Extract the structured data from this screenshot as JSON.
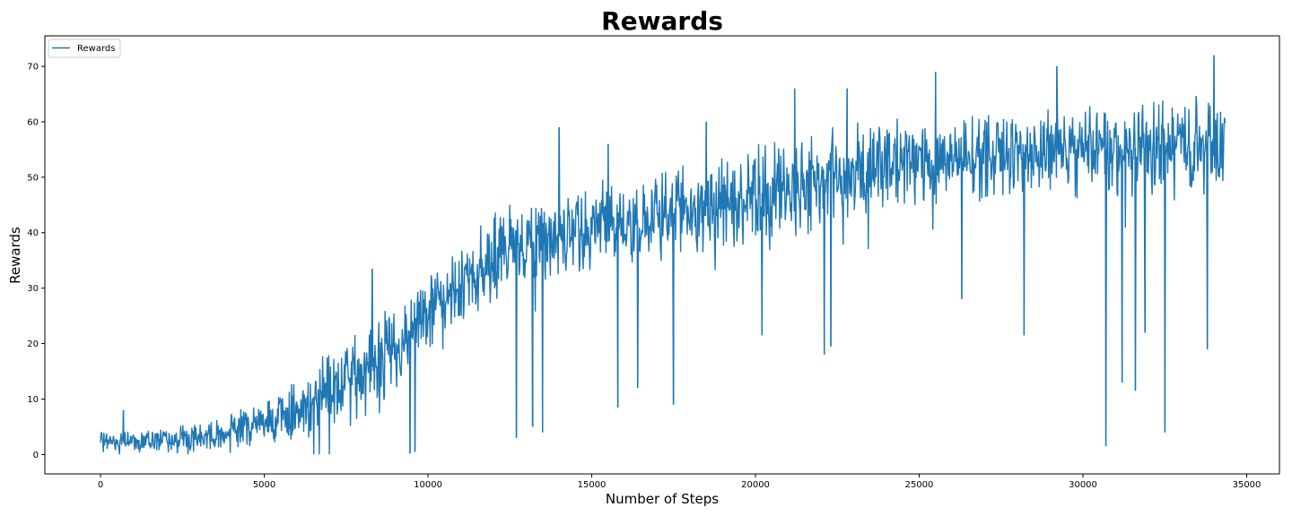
{
  "chart_data": {
    "type": "line",
    "title": "Rewards",
    "xlabel": "Number of Steps",
    "ylabel": "Rewards",
    "xlim": [
      -1700,
      36000
    ],
    "ylim": [
      -3.5,
      75.5
    ],
    "xticks": [
      0,
      5000,
      10000,
      15000,
      20000,
      25000,
      30000,
      35000
    ],
    "yticks": [
      0,
      10,
      20,
      30,
      40,
      50,
      60,
      70
    ],
    "grid": false,
    "legend": {
      "position": "top-left",
      "entries": [
        "Rewards"
      ]
    },
    "series_color": "#1f77b4",
    "series": [
      {
        "name": "Rewards",
        "x_end": 34350,
        "trend": {
          "x": [
            0,
            1000,
            2000,
            3000,
            4000,
            5000,
            6000,
            7000,
            8000,
            9000,
            10000,
            11000,
            12000,
            13000,
            14000,
            15000,
            16000,
            17000,
            18000,
            19000,
            20000,
            21000,
            22000,
            23000,
            24000,
            25000,
            26000,
            27000,
            28000,
            29000,
            30000,
            31000,
            32000,
            33000,
            34350
          ],
          "low": [
            0.2,
            0.2,
            0.2,
            0.3,
            0.5,
            0.8,
            1.5,
            2.5,
            5,
            10,
            18,
            23,
            26,
            29,
            30,
            32,
            33,
            34,
            35,
            36,
            37,
            38,
            39,
            41,
            43,
            44,
            45,
            45,
            46,
            46,
            46,
            46,
            46,
            46,
            46
          ],
          "high": [
            4.5,
            4.5,
            5,
            6,
            8,
            11,
            14,
            19,
            24,
            28,
            34,
            39,
            44,
            47,
            49,
            50,
            51,
            52,
            53,
            55,
            57,
            58,
            60,
            61,
            62,
            62,
            62,
            63,
            63,
            63,
            64,
            64,
            65,
            66,
            66
          ]
        },
        "spikes": [
          {
            "x": 700,
            "y": 8
          },
          {
            "x": 8300,
            "y": 33.5
          },
          {
            "x": 9450,
            "y": 0.2
          },
          {
            "x": 9600,
            "y": 0.5
          },
          {
            "x": 12700,
            "y": 3
          },
          {
            "x": 13200,
            "y": 5
          },
          {
            "x": 13500,
            "y": 4
          },
          {
            "x": 14000,
            "y": 59
          },
          {
            "x": 15500,
            "y": 56
          },
          {
            "x": 15800,
            "y": 8.5
          },
          {
            "x": 16400,
            "y": 12
          },
          {
            "x": 17500,
            "y": 9
          },
          {
            "x": 18500,
            "y": 60
          },
          {
            "x": 20200,
            "y": 21.5
          },
          {
            "x": 21200,
            "y": 66
          },
          {
            "x": 22100,
            "y": 18
          },
          {
            "x": 22300,
            "y": 19.5
          },
          {
            "x": 22800,
            "y": 66
          },
          {
            "x": 25500,
            "y": 69
          },
          {
            "x": 26300,
            "y": 28
          },
          {
            "x": 28200,
            "y": 21.5
          },
          {
            "x": 29200,
            "y": 70
          },
          {
            "x": 30700,
            "y": 1.5
          },
          {
            "x": 31200,
            "y": 13
          },
          {
            "x": 31600,
            "y": 11.5
          },
          {
            "x": 31900,
            "y": 22
          },
          {
            "x": 32500,
            "y": 4
          },
          {
            "x": 33800,
            "y": 19
          },
          {
            "x": 34000,
            "y": 72
          }
        ]
      }
    ]
  }
}
